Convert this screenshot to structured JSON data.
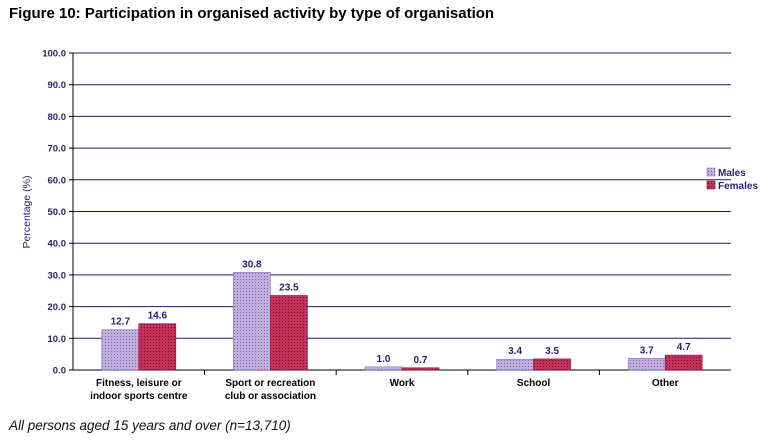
{
  "page": {
    "title": "Figure 10: Participation in organised activity by type of organisation",
    "footnote": "All persons aged 15 years and over (n=13,710)"
  },
  "chart_data": {
    "type": "bar",
    "title": "Figure 10: Participation in organised activity by type of organisation",
    "xlabel": "",
    "ylabel": "Percentage (%)",
    "ylim": [
      0,
      100
    ],
    "yticks": [
      "0.0",
      "10.0",
      "20.0",
      "30.0",
      "40.0",
      "50.0",
      "60.0",
      "70.0",
      "80.0",
      "90.0",
      "100.0"
    ],
    "grid": true,
    "legend_position": "right",
    "categories": [
      [
        "Fitness, leisure or",
        "indoor sports centre"
      ],
      [
        "Sport or recreation",
        "club or association"
      ],
      [
        "Work"
      ],
      [
        "School"
      ],
      [
        "Other"
      ]
    ],
    "series": [
      {
        "name": "Males",
        "values": [
          12.7,
          30.8,
          1.0,
          3.4,
          3.7
        ],
        "labels": [
          "12.7",
          "30.8",
          "1.0",
          "3.4",
          "3.7"
        ],
        "color": "#b49bd3"
      },
      {
        "name": "Females",
        "values": [
          14.6,
          23.5,
          0.7,
          3.5,
          4.7
        ],
        "labels": [
          "14.6",
          "23.5",
          "0.7",
          "3.5",
          "4.7"
        ],
        "color": "#c0305a"
      }
    ]
  }
}
